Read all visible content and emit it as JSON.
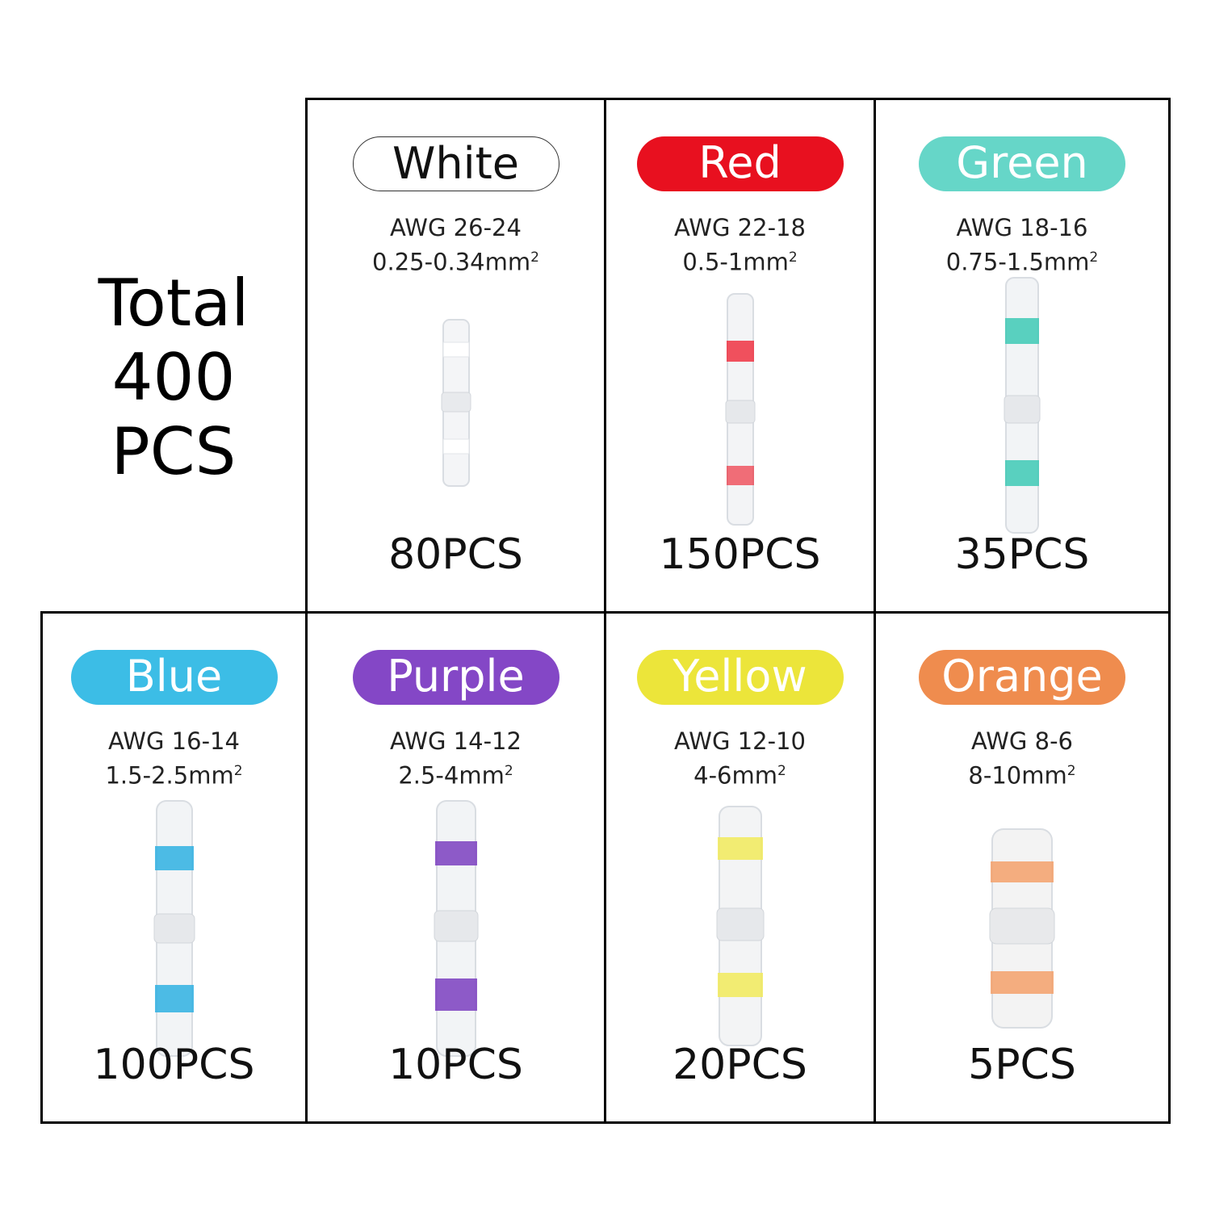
{
  "total": {
    "line1": "Total",
    "line2": "400 PCS"
  },
  "items": [
    {
      "color_name": "White",
      "awg": "AWG 26-24",
      "mm": "0.25-0.34mm",
      "sup": "2",
      "count": "80PCS",
      "color": "#ffffff",
      "text_color": "#111111",
      "band": "#ffffff"
    },
    {
      "color_name": "Red",
      "awg": "AWG 22-18",
      "mm": "0.5-1mm",
      "sup": "2",
      "count": "150PCS",
      "color": "#e8101f",
      "text_color": "#ffffff",
      "band": "#ee3342"
    },
    {
      "color_name": "Green",
      "awg": "AWG 18-16",
      "mm": "0.75-1.5mm",
      "sup": "2",
      "count": "35PCS",
      "color": "#66d6c8",
      "text_color": "#ffffff",
      "band": "#3ec9b5"
    },
    {
      "color_name": "Blue",
      "awg": "AWG 16-14",
      "mm": "1.5-2.5mm",
      "sup": "2",
      "count": "100PCS",
      "color": "#3cbde6",
      "text_color": "#ffffff",
      "band": "#2fb0e2"
    },
    {
      "color_name": "Purple",
      "awg": "AWG 14-12",
      "mm": "2.5-4mm",
      "sup": "2",
      "count": "10PCS",
      "color": "#8447c6",
      "text_color": "#ffffff",
      "band": "#7b3ec0"
    },
    {
      "color_name": "Yellow",
      "awg": "AWG 12-10",
      "mm": "4-6mm",
      "sup": "2",
      "count": "20PCS",
      "color": "#ece53a",
      "text_color": "#ffffff",
      "band": "#f1ea5a"
    },
    {
      "color_name": "Orange",
      "awg": "AWG 8-6",
      "mm": "8-10mm",
      "sup": "2",
      "count": "5PCS",
      "color": "#ef8c4e",
      "text_color": "#ffffff",
      "band": "#f3a06a"
    }
  ]
}
